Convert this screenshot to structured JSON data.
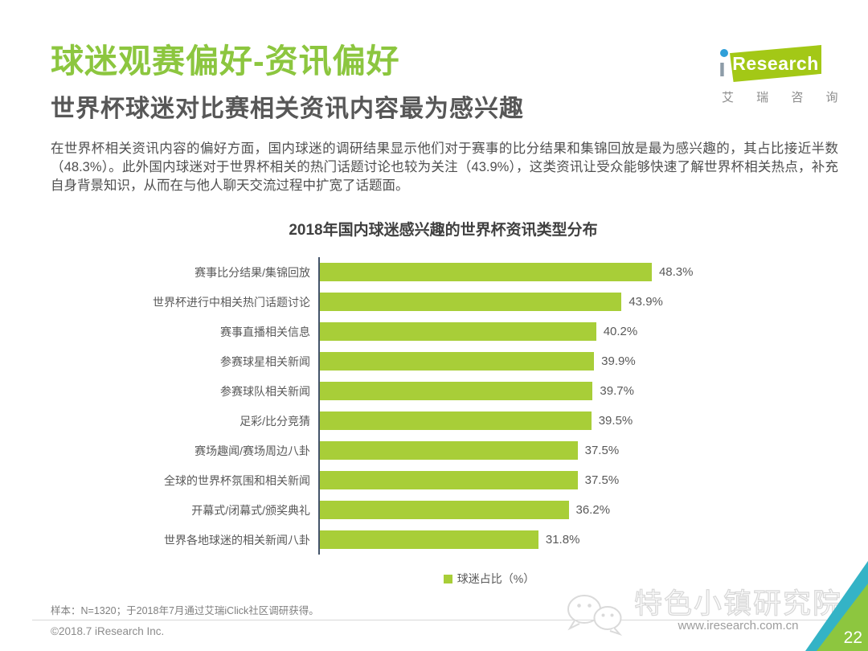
{
  "page": {
    "title": "球迷观赛偏好-资讯偏好",
    "subtitle": "世界杯球迷对比赛相关资讯内容最为感兴趣",
    "paragraph": "在世界杯相关资讯内容的偏好方面，国内球迷的调研结果显示他们对于赛事的比分结果和集锦回放是最为感兴趣的，其占比接近半数（48.3%）。此外国内球迷对于世界杯相关的热门话题讨论也较为关注（43.9%），这类资讯让受众能够快速了解世界杯相关热点，补充自身背景知识，从而在与他人聊天交流过程中扩宽了话题面。",
    "page_number": "22"
  },
  "logo": {
    "brand_i": "ı",
    "brand": "Research",
    "subtext": "艾 瑞 咨 询",
    "brand_green": "#a3c816",
    "dot_blue": "#2f9fd8"
  },
  "chart_data": {
    "type": "bar",
    "orientation": "horizontal",
    "title": "2018年国内球迷感兴趣的世界杯资讯类型分布",
    "categories": [
      "赛事比分结果/集锦回放",
      "世界杯进行中相关热门话题讨论",
      "赛事直播相关信息",
      "参赛球星相关新闻",
      "参赛球队相关新闻",
      "足彩/比分竞猜",
      "赛场趣闻/赛场周边八卦",
      "全球的世界杯氛围和相关新闻",
      "开幕式/闭幕式/颁奖典礼",
      "世界各地球迷的相关新闻八卦"
    ],
    "values": [
      48.3,
      43.9,
      40.2,
      39.9,
      39.7,
      39.5,
      37.5,
      37.5,
      36.2,
      31.8
    ],
    "value_labels": [
      "48.3%",
      "43.9%",
      "40.2%",
      "39.9%",
      "39.7%",
      "39.5%",
      "37.5%",
      "37.5%",
      "36.2%",
      "31.8%"
    ],
    "legend": "球迷占比（%）",
    "bar_color": "#a8ce38",
    "axis_color": "#44546a",
    "xlim": [
      0,
      50
    ],
    "grid": false,
    "legend_position": "bottom-center"
  },
  "footer": {
    "sample_note": "样本：N=1320；于2018年7月通过艾瑞iClick社区调研获得。",
    "copyright": "©2018.7 iResearch Inc.",
    "watermark": "特色小镇研究院",
    "website": "www.iresearch.com.cn"
  }
}
